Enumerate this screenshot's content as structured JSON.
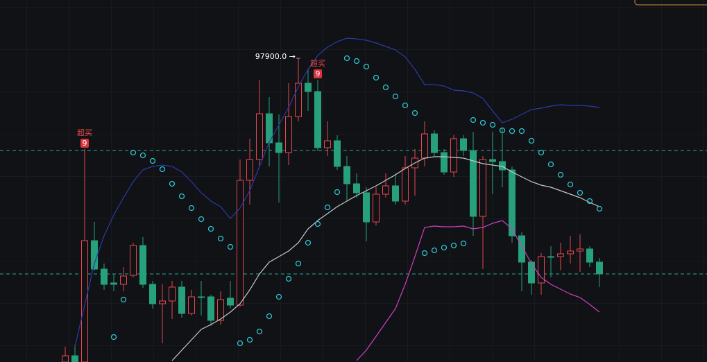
{
  "chart_data": {
    "type": "candlestick",
    "ylim": [
      89140,
      99580
    ],
    "up_color": "#e5484d",
    "down_color": "#26a17b",
    "open": [
      89140,
      89320,
      89140,
      92640,
      91820,
      91420,
      91380,
      91640,
      92500,
      91380,
      90820,
      90900,
      91300,
      90540,
      91020,
      91020,
      90340,
      90980,
      90780,
      94380,
      94980,
      96300,
      95460,
      95180,
      96220,
      97180,
      96940,
      95320,
      95520,
      94780,
      94280,
      94020,
      93180,
      93980,
      94220,
      93780,
      94740,
      95020,
      95720,
      95180,
      94620,
      95580,
      95240,
      93340,
      94980,
      94920,
      94680,
      92780,
      92020,
      91420,
      92180,
      92180,
      92260,
      92340,
      92400,
      92020
    ],
    "high": [
      89580,
      89640,
      95280,
      93180,
      91980,
      91680,
      91880,
      92580,
      92740,
      91480,
      91380,
      91480,
      91480,
      91220,
      91480,
      91080,
      91180,
      91480,
      94980,
      95580,
      97280,
      96780,
      96280,
      97180,
      97900,
      97580,
      97280,
      96080,
      95680,
      95080,
      94580,
      94180,
      94180,
      94580,
      94580,
      95080,
      95280,
      96080,
      95820,
      95280,
      95680,
      95680,
      95780,
      95080,
      95780,
      95880,
      94780,
      92880,
      92080,
      92280,
      92480,
      92580,
      92780,
      92820,
      92480,
      92140
    ],
    "low": [
      89140,
      89140,
      89140,
      91780,
      91220,
      91180,
      91180,
      91580,
      91280,
      90680,
      89680,
      90380,
      90420,
      90480,
      90480,
      90180,
      90220,
      90680,
      90740,
      93680,
      94780,
      94780,
      93740,
      94820,
      96080,
      96380,
      95220,
      95080,
      94680,
      93780,
      93880,
      92620,
      93080,
      93880,
      93680,
      93680,
      93940,
      94780,
      95080,
      94540,
      94480,
      95080,
      92780,
      91820,
      93980,
      94180,
      92580,
      91180,
      91080,
      91080,
      91580,
      91780,
      91980,
      91740,
      91880,
      91300
    ],
    "close": [
      89320,
      89140,
      92640,
      91820,
      91380,
      91380,
      91620,
      92500,
      91380,
      90820,
      90900,
      91300,
      90540,
      91020,
      91000,
      90340,
      90940,
      90780,
      94380,
      94980,
      96300,
      95460,
      95180,
      96220,
      97180,
      96940,
      95320,
      95520,
      94780,
      94280,
      94020,
      93180,
      93980,
      94220,
      93780,
      94740,
      95020,
      95720,
      95180,
      94620,
      95580,
      95240,
      93340,
      94980,
      94920,
      94680,
      92780,
      92020,
      91420,
      92180,
      92180,
      92260,
      92340,
      92400,
      92020,
      91680
    ],
    "series": [
      {
        "name": "UB",
        "color": "#2b3aa8",
        "values": [
          null,
          89580,
          90780,
          91980,
          92780,
          93380,
          93880,
          94340,
          94680,
          94780,
          94820,
          94780,
          94620,
          94340,
          94020,
          93780,
          93620,
          93280,
          93580,
          94080,
          94780,
          95480,
          95980,
          96480,
          97080,
          97580,
          97980,
          98220,
          98380,
          98480,
          98460,
          98420,
          98340,
          98240,
          98140,
          97940,
          97580,
          97140,
          97140,
          97100,
          96980,
          96960,
          96900,
          96740,
          96380,
          96040,
          96140,
          96280,
          96420,
          96460,
          96520,
          96560,
          96540,
          96540,
          96520,
          96480
        ]
      },
      {
        "name": "MB",
        "color": "#c9c9c9",
        "values": [
          null,
          null,
          null,
          null,
          null,
          null,
          null,
          null,
          null,
          null,
          null,
          89180,
          89480,
          89780,
          90080,
          90220,
          90380,
          90580,
          90820,
          91220,
          91680,
          92020,
          92180,
          92340,
          92580,
          92980,
          93220,
          93420,
          93620,
          93780,
          93940,
          94080,
          94220,
          94380,
          94540,
          94720,
          94880,
          95020,
          95060,
          95060,
          95040,
          95020,
          94940,
          94860,
          94820,
          94780,
          94620,
          94480,
          94340,
          94240,
          94180,
          94080,
          93980,
          93880,
          93740,
          93620
        ]
      },
      {
        "name": "LB",
        "color": "#d13fc4",
        "values": [
          null,
          null,
          null,
          null,
          null,
          null,
          null,
          null,
          null,
          null,
          null,
          null,
          null,
          null,
          null,
          null,
          null,
          null,
          null,
          null,
          null,
          null,
          null,
          null,
          null,
          null,
          null,
          null,
          null,
          null,
          89180,
          89480,
          89880,
          90280,
          90680,
          91380,
          92180,
          93020,
          93060,
          93040,
          93040,
          93060,
          92980,
          93020,
          93140,
          93220,
          92980,
          92480,
          91980,
          91580,
          91380,
          91240,
          91100,
          91000,
          90800,
          90580
        ]
      }
    ],
    "sar": {
      "color": "#2ec4d0",
      "values": [
        null,
        null,
        null,
        null,
        null,
        89860,
        90940,
        95180,
        95100,
        94940,
        94700,
        94280,
        93920,
        93580,
        93260,
        92980,
        92700,
        92460,
        89680,
        89780,
        90020,
        90460,
        91020,
        91540,
        91980,
        92580,
        93120,
        93600,
        94040,
        97900,
        97820,
        97660,
        97340,
        97060,
        96800,
        96540,
        96320,
        92280,
        92360,
        92440,
        92500,
        92560,
        96120,
        96040,
        95980,
        95820,
        95800,
        95800,
        95520,
        95180,
        94840,
        94540,
        94260,
        94020,
        93780,
        93560
      ]
    },
    "price_lines": [
      95240,
      91680
    ],
    "max_label": {
      "label": "97900.0 →",
      "value": 97900,
      "index": 24
    },
    "signals": [
      {
        "index": 2,
        "text": "超买",
        "count": 9
      },
      {
        "index": 26,
        "text": "超买",
        "count": 9
      }
    ]
  }
}
